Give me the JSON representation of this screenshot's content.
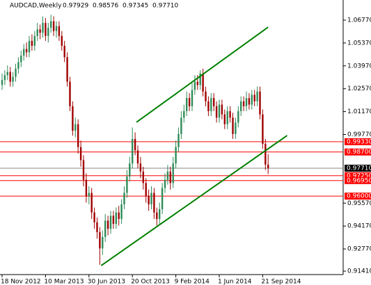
{
  "chart_data": {
    "type": "candlestick",
    "title": "AUDCAD,Weekly",
    "header_values": [
      "0.97929",
      "0.98576",
      "0.97345",
      "0.97710"
    ],
    "categories": [
      "18 Nov 2012",
      null,
      null,
      null,
      null,
      null,
      null,
      null,
      null,
      null,
      null,
      null,
      null,
      null,
      null,
      null,
      "10 Mar 2013",
      null,
      null,
      null,
      null,
      null,
      null,
      null,
      null,
      null,
      null,
      null,
      null,
      null,
      null,
      null,
      "30 Jun 2013",
      null,
      null,
      null,
      null,
      null,
      null,
      null,
      null,
      null,
      null,
      null,
      null,
      null,
      null,
      null,
      "20 Oct 2013",
      null,
      null,
      null,
      null,
      null,
      null,
      null,
      null,
      null,
      null,
      null,
      null,
      null,
      null,
      null,
      "9 Feb 2014",
      null,
      null,
      null,
      null,
      null,
      null,
      null,
      null,
      null,
      null,
      null,
      null,
      null,
      null,
      null,
      "1 Jun 2014",
      null,
      null,
      null,
      null,
      null,
      null,
      null,
      null,
      null,
      null,
      null,
      null,
      null,
      null,
      null,
      "21 Sep 2014",
      null,
      null
    ],
    "open": [
      1.028,
      1.031,
      1.034,
      1.036,
      1.03,
      1.033,
      1.038,
      1.042,
      1.046,
      1.05,
      1.048,
      1.055,
      1.052,
      1.058,
      1.062,
      1.06,
      1.066,
      1.058,
      1.063,
      1.067,
      1.061,
      1.064,
      1.058,
      1.052,
      1.045,
      1.03,
      1.015,
      1.0,
      1.004,
      0.99,
      0.982,
      0.97,
      0.96,
      0.962,
      0.95,
      0.944,
      0.938,
      0.928,
      0.935,
      0.945,
      0.94,
      0.948,
      0.943,
      0.95,
      0.946,
      0.955,
      0.962,
      0.972,
      0.98,
      0.995,
      0.988,
      0.98,
      0.975,
      0.968,
      0.96,
      0.955,
      0.962,
      0.95,
      0.946,
      0.952,
      0.965,
      0.97,
      0.975,
      0.968,
      0.98,
      0.99,
      0.998,
      1.008,
      1.012,
      1.02,
      1.015,
      1.025,
      1.03,
      1.028,
      1.035,
      1.024,
      1.018,
      1.012,
      1.02,
      1.015,
      1.008,
      1.016,
      1.01,
      1.004,
      1.012,
      1.008,
      0.998,
      1.005,
      1.012,
      1.018,
      1.015,
      1.02,
      1.016,
      1.022,
      1.018,
      1.024,
      1.01,
      0.992,
      0.97929
    ],
    "high": [
      1.035,
      1.037,
      1.04,
      1.039,
      1.036,
      1.041,
      1.045,
      1.049,
      1.053,
      1.054,
      1.058,
      1.059,
      1.061,
      1.066,
      1.065,
      1.07,
      1.069,
      1.066,
      1.071,
      1.07,
      1.067,
      1.067,
      1.061,
      1.055,
      1.048,
      1.033,
      1.018,
      1.008,
      1.007,
      0.994,
      0.985,
      0.974,
      0.966,
      0.965,
      0.953,
      0.947,
      0.941,
      0.939,
      0.949,
      0.948,
      0.951,
      0.951,
      0.953,
      0.954,
      0.958,
      0.966,
      0.976,
      0.984,
      1.002,
      0.999,
      0.991,
      0.984,
      0.978,
      0.971,
      0.964,
      0.966,
      0.965,
      0.953,
      0.956,
      0.968,
      0.974,
      0.979,
      0.978,
      0.984,
      0.994,
      1.002,
      1.012,
      1.016,
      1.024,
      1.023,
      1.029,
      1.034,
      1.034,
      1.037,
      1.038,
      1.027,
      1.021,
      1.023,
      1.023,
      1.018,
      1.019,
      1.019,
      1.013,
      1.015,
      1.015,
      1.011,
      1.008,
      1.015,
      1.021,
      1.021,
      1.024,
      1.023,
      1.025,
      1.025,
      1.027,
      1.027,
      1.013,
      0.995,
      0.98576
    ],
    "low": [
      1.025,
      1.028,
      1.031,
      1.027,
      1.027,
      1.03,
      1.035,
      1.039,
      1.043,
      1.045,
      1.045,
      1.049,
      1.049,
      1.055,
      1.056,
      1.057,
      1.055,
      1.054,
      1.06,
      1.058,
      1.057,
      1.055,
      1.049,
      1.042,
      1.027,
      1.012,
      0.997,
      0.996,
      0.986,
      0.978,
      0.966,
      0.956,
      0.955,
      0.946,
      0.94,
      0.934,
      0.918,
      0.924,
      0.932,
      0.936,
      0.937,
      0.94,
      0.94,
      0.942,
      0.943,
      0.952,
      0.959,
      0.969,
      0.977,
      0.985,
      0.977,
      0.971,
      0.964,
      0.956,
      0.951,
      0.952,
      0.946,
      0.942,
      0.943,
      0.949,
      0.962,
      0.967,
      0.964,
      0.965,
      0.977,
      0.987,
      0.995,
      1.005,
      1.009,
      1.012,
      1.012,
      1.022,
      1.025,
      1.025,
      1.021,
      1.015,
      1.009,
      1.009,
      1.012,
      1.005,
      1.005,
      1.007,
      1.001,
      1.001,
      1.005,
      0.995,
      0.995,
      1.002,
      1.009,
      1.012,
      1.012,
      1.013,
      1.013,
      1.015,
      1.015,
      1.007,
      0.989,
      0.976,
      0.97345
    ],
    "close": [
      1.031,
      1.034,
      1.036,
      1.03,
      1.033,
      1.038,
      1.042,
      1.046,
      1.05,
      1.048,
      1.055,
      1.052,
      1.058,
      1.062,
      1.06,
      1.066,
      1.058,
      1.063,
      1.067,
      1.061,
      1.064,
      1.058,
      1.052,
      1.045,
      1.03,
      1.015,
      1.0,
      1.004,
      0.99,
      0.982,
      0.97,
      0.96,
      0.962,
      0.95,
      0.944,
      0.938,
      0.928,
      0.935,
      0.945,
      0.94,
      0.948,
      0.943,
      0.95,
      0.946,
      0.955,
      0.962,
      0.972,
      0.98,
      0.995,
      0.988,
      0.98,
      0.975,
      0.968,
      0.96,
      0.955,
      0.962,
      0.95,
      0.946,
      0.952,
      0.965,
      0.97,
      0.975,
      0.968,
      0.98,
      0.99,
      0.998,
      1.008,
      1.012,
      1.02,
      1.015,
      1.025,
      1.03,
      1.028,
      1.035,
      1.024,
      1.018,
      1.012,
      1.02,
      1.015,
      1.008,
      1.016,
      1.01,
      1.004,
      1.012,
      1.008,
      0.998,
      1.005,
      1.012,
      1.018,
      1.015,
      1.02,
      1.016,
      1.022,
      1.018,
      1.024,
      1.01,
      0.992,
      0.97929,
      0.9771
    ],
    "up_color": "#2e8b57",
    "down_color": "#a00000",
    "ylim": [
      0.912,
      1.08
    ],
    "yticks": [
      {
        "value": 1.0677,
        "label": "1.06770"
      },
      {
        "value": 1.0537,
        "label": "1.05370"
      },
      {
        "value": 1.0397,
        "label": "1.03970"
      },
      {
        "value": 1.0257,
        "label": "1.02570"
      },
      {
        "value": 1.0117,
        "label": "1.01170"
      },
      {
        "value": 0.9977,
        "label": "0.99770"
      },
      {
        "value": 0.9557,
        "label": "0.95570"
      },
      {
        "value": 0.9417,
        "label": "0.94170"
      },
      {
        "value": 0.9277,
        "label": "0.92770"
      },
      {
        "value": 0.9141,
        "label": "0.91410"
      }
    ],
    "levels": [
      {
        "value": 0.9933,
        "label": "0.99330",
        "color": "#ff0000"
      },
      {
        "value": 0.987,
        "label": "0.98700",
        "color": "#ff0000"
      },
      {
        "value": 0.9725,
        "label": "0.97250",
        "color": "#ff0000"
      },
      {
        "value": 0.9695,
        "label": "0.96950",
        "color": "#ff0000"
      },
      {
        "value": 0.96,
        "label": "0.96000",
        "color": "#ff0000"
      },
      {
        "value": 0.9771,
        "label": "0.97710",
        "color": "#888888"
      }
    ],
    "trendlines": [
      {
        "x": [
          49.5,
          98
        ],
        "y": [
          1.0052,
          1.0634
        ],
        "color": "#008000"
      },
      {
        "x": [
          36.5,
          105
        ],
        "y": [
          0.9175,
          0.9971
        ],
        "color": "#008000"
      }
    ]
  }
}
